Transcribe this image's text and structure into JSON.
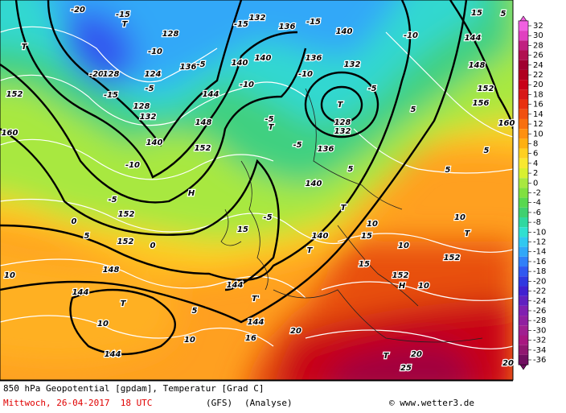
{
  "map_labels": [
    "-20",
    "-15",
    "T",
    "128",
    "-10",
    "136",
    "-5",
    "124",
    "-20",
    "128",
    "-15",
    "-5",
    "128",
    "132",
    "T",
    "152",
    "160",
    "140",
    "148",
    "144",
    "152",
    "-10",
    "H",
    "-5",
    "152",
    "0",
    "5",
    "152",
    "0",
    "10",
    "148",
    "144",
    "T",
    "10",
    "5",
    "10",
    "144",
    "132",
    "-15",
    "136",
    "-15",
    "140",
    "140",
    "-10",
    "136",
    "-10",
    "132",
    "-5",
    "T",
    "128",
    "132",
    "-5",
    "T",
    "-5",
    "136",
    "5",
    "140",
    "T",
    "-5",
    "15",
    "140",
    "T",
    "144",
    "T'",
    "144",
    "20",
    "10",
    "15",
    "10",
    "15",
    "152",
    "H",
    "10",
    "T",
    "152",
    "10",
    "140",
    "-10",
    "144",
    "148",
    "152",
    "156",
    "160",
    "5",
    "5",
    "5",
    "15",
    "5",
    "20",
    "25",
    "T",
    "20",
    "16"
  ],
  "legend": {
    "values": [
      32,
      30,
      28,
      26,
      24,
      22,
      20,
      18,
      16,
      14,
      12,
      10,
      8,
      6,
      4,
      2,
      0,
      -2,
      -4,
      -6,
      -8,
      -10,
      -12,
      -14,
      -16,
      -18,
      -20,
      -22,
      -24,
      -26,
      -28,
      -30,
      -32,
      -34,
      -36
    ],
    "colors": [
      "#f060e0",
      "#e040c0",
      "#c02080",
      "#b01050",
      "#a00030",
      "#b00020",
      "#c80018",
      "#d81818",
      "#e83010",
      "#f05010",
      "#f87010",
      "#ff9010",
      "#ffb010",
      "#ffd020",
      "#f8e830",
      "#d8f030",
      "#a8e840",
      "#80e040",
      "#58d850",
      "#40d070",
      "#30d8a0",
      "#30e0d0",
      "#30c8f0",
      "#30a8f8",
      "#3080f8",
      "#3058f0",
      "#3038e0",
      "#4020d0",
      "#6020c0",
      "#8020b0",
      "#9020a0",
      "#a02090",
      "#a81880",
      "#901870",
      "#701060"
    ]
  },
  "footer": {
    "title": "850 hPa Geopotential [gpdam], Temperatur [Grad C]",
    "date": "Mittwoch, 26-04-2017  18 UTC",
    "model": "(GFS)",
    "run": "(Analyse)",
    "credit": "© www.wetter3.de"
  }
}
